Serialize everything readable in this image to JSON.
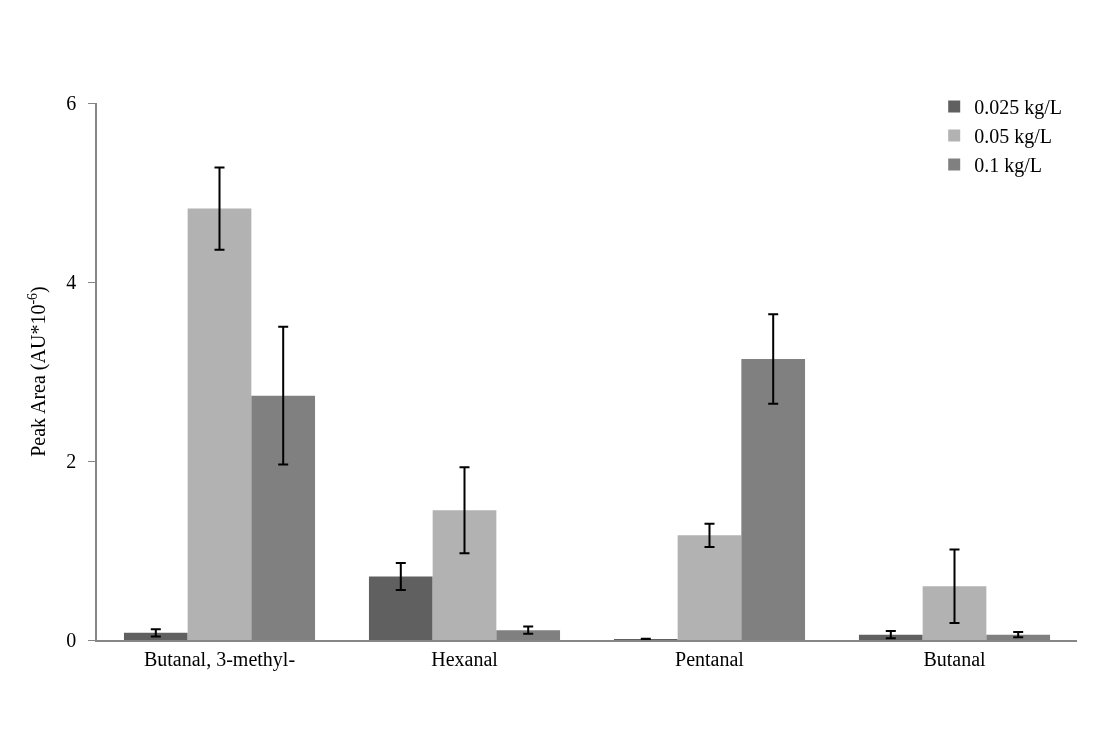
{
  "chart_data": {
    "type": "bar",
    "ylabel": "Peak Area (AU*10$^{-6}$)",
    "categories": [
      "Butanal, 3-methyl-",
      "Hexanal",
      "Pentanal",
      "Butanal"
    ],
    "series": [
      {
        "name": "0.025 kg/L",
        "color": "#606060",
        "values": [
          0.08,
          0.71,
          0.01,
          0.06
        ],
        "errors": [
          0.04,
          0.15,
          0.005,
          0.04
        ]
      },
      {
        "name": "0.05 kg/L",
        "color": "#b2b2b2",
        "values": [
          4.82,
          1.45,
          1.17,
          0.6
        ],
        "errors": [
          0.46,
          0.48,
          0.13,
          0.41
        ]
      },
      {
        "name": "0.1 kg/L",
        "color": "#808080",
        "values": [
          2.73,
          0.11,
          3.14,
          0.06
        ],
        "errors": [
          0.77,
          0.04,
          0.5,
          0.03
        ]
      }
    ],
    "ylim": [
      0,
      6
    ],
    "yticks": [
      0,
      2,
      4,
      6
    ],
    "legend": "top right"
  }
}
